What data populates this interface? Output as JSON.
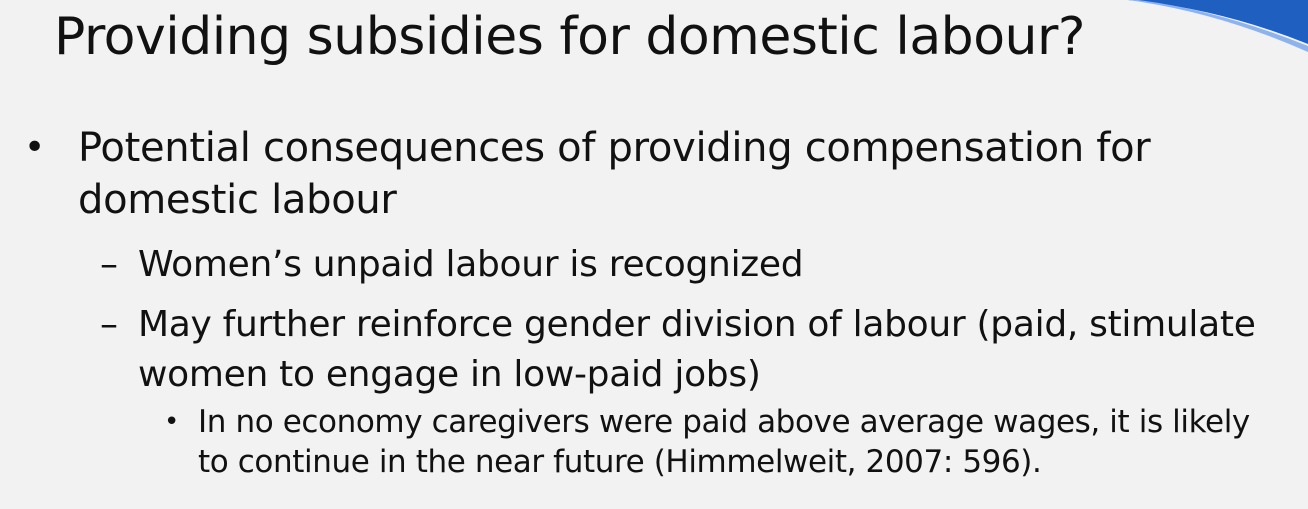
{
  "slide": {
    "title": "Providing subsidies for domestic labour?",
    "bullets": [
      {
        "marker": "•",
        "text": "Potential consequences of providing compensation for domestic labour",
        "sub": [
          {
            "marker": "–",
            "text": "Women’s unpaid labour is recognized"
          },
          {
            "marker": "–",
            "text": "May further reinforce gender division of labour (paid, stimulate women to engage in low-paid jobs)",
            "sub": [
              {
                "marker": "•",
                "text": "In no economy caregivers were paid above average wages, it is likely to continue in the near future (Himmelweit, 2007: 596)."
              }
            ]
          }
        ]
      }
    ],
    "colors": {
      "background": "#f2f2f2",
      "text": "#111111",
      "accent": "#1f5fbf"
    }
  }
}
